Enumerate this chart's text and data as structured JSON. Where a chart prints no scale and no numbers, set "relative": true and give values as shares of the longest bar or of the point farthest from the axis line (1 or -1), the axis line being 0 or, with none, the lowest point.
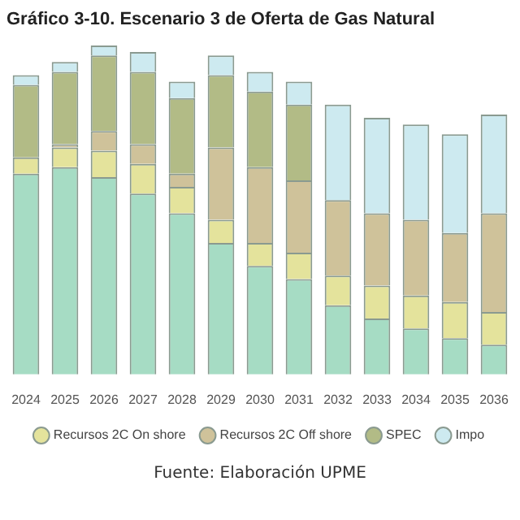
{
  "chart_data": {
    "type": "bar",
    "title": "Gráfico 3-10. Escenario 3 de Oferta de Gas Natural",
    "stacked": true,
    "relative": true,
    "legend": "bottom",
    "annotations": [
      "Fuente: Elaboración UPME"
    ],
    "categories": [
      "2024",
      "2025",
      "2026",
      "2027",
      "2028",
      "2029",
      "2030",
      "2031",
      "2032",
      "2033",
      "2034",
      "2035",
      "2036"
    ],
    "series": [
      {
        "color": "#a6dcc4",
        "values": [
          0.61,
          0.63,
          0.6,
          0.55,
          0.49,
          0.4,
          0.33,
          0.29,
          0.21,
          0.17,
          0.14,
          0.11,
          0.09
        ]
      },
      {
        "name": "Recursos 2C On shore",
        "color": "#e4e39c",
        "values": [
          0.05,
          0.06,
          0.08,
          0.09,
          0.08,
          0.07,
          0.07,
          0.08,
          0.09,
          0.1,
          0.1,
          0.11,
          0.1
        ]
      },
      {
        "name": "Recursos 2C Off shore",
        "color": "#cfc29a",
        "values": [
          0,
          0.01,
          0.06,
          0.06,
          0.04,
          0.22,
          0.23,
          0.22,
          0.23,
          0.22,
          0.23,
          0.21,
          0.3
        ]
      },
      {
        "name": "SPEC",
        "color": "#b2bb86",
        "values": [
          0.22,
          0.22,
          0.23,
          0.22,
          0.23,
          0.22,
          0.23,
          0.23,
          0,
          0,
          0,
          0,
          0
        ]
      },
      {
        "name": "Impo",
        "color": "#cdeaf0",
        "values": [
          0.03,
          0.03,
          0.03,
          0.06,
          0.05,
          0.06,
          0.06,
          0.07,
          0.29,
          0.29,
          0.29,
          0.3,
          0.3
        ]
      }
    ]
  }
}
